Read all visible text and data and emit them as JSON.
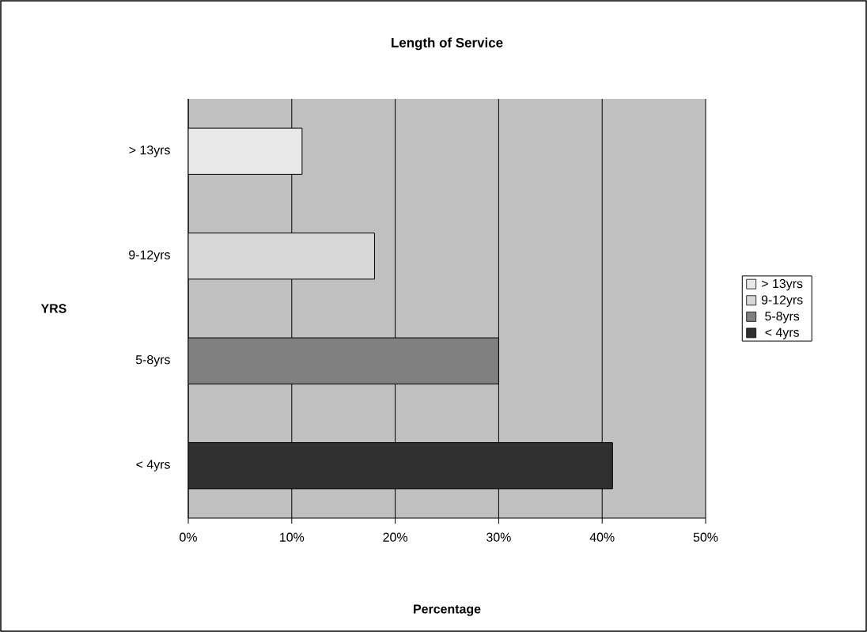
{
  "chart_data": {
    "type": "bar",
    "orientation": "horizontal",
    "title": "Length of Service",
    "xlabel": "Percentage",
    "ylabel": "YRS",
    "categories": [
      "> 13yrs",
      "9-12yrs",
      "5-8yrs",
      "< 4yrs"
    ],
    "series": [
      {
        "name": "> 13yrs",
        "color": "#e8e8e8",
        "values": [
          11,
          null,
          null,
          null
        ]
      },
      {
        "name": "9-12yrs",
        "color": "#d8d8d8",
        "values": [
          null,
          18,
          null,
          null
        ]
      },
      {
        "name": "5-8yrs",
        "color": "#808080",
        "values": [
          null,
          null,
          30,
          null
        ]
      },
      {
        "name": "< 4yrs",
        "color": "#303030",
        "values": [
          null,
          null,
          null,
          41
        ]
      }
    ],
    "xlim": [
      0,
      50
    ],
    "xticks": [
      {
        "value": 0,
        "label": "0%"
      },
      {
        "value": 10,
        "label": "10%"
      },
      {
        "value": 20,
        "label": "20%"
      },
      {
        "value": 30,
        "label": "30%"
      },
      {
        "value": 40,
        "label": "40%"
      },
      {
        "value": 50,
        "label": "50%"
      }
    ],
    "grid": "x",
    "legend": "right"
  }
}
